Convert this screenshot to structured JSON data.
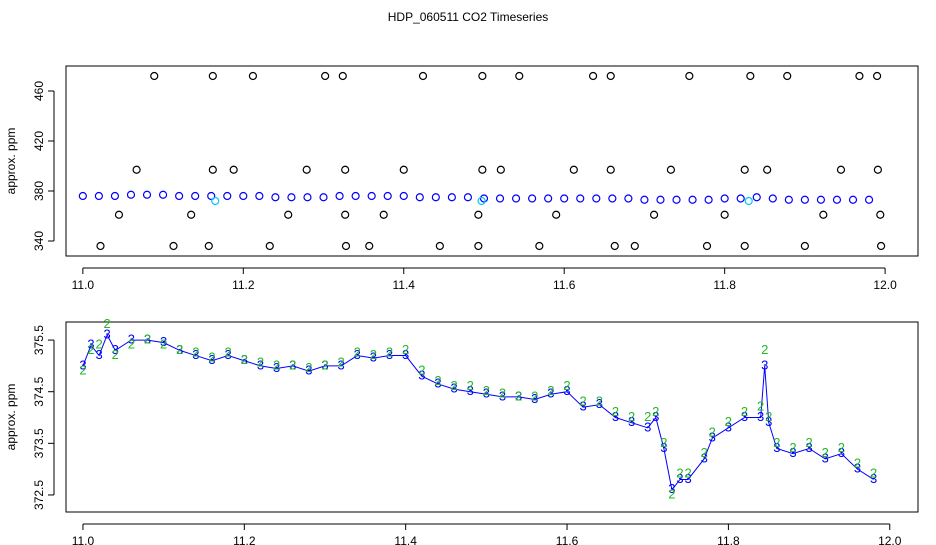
{
  "chart_data": [
    {
      "type": "scatter",
      "title": "HDP_060511  CO2 Timeseries",
      "ylabel": "approx. ppm",
      "xlim": [
        10.979,
        12.041
      ],
      "ylim": [
        328,
        480
      ],
      "xticks": [
        {
          "value": 11,
          "label": "11.0"
        },
        {
          "value": 11.2,
          "label": "11.2"
        },
        {
          "value": 11.4,
          "label": "11.4"
        },
        {
          "value": 11.6,
          "label": "11.6"
        },
        {
          "value": 11.8,
          "label": "11.8"
        },
        {
          "value": 12,
          "label": "12.0"
        }
      ],
      "yticks": [
        340,
        380,
        420,
        460
      ],
      "series": [
        {
          "color": "#0000ff",
          "x": [
            11.0,
            11.02,
            11.04,
            11.06,
            11.08,
            11.1,
            11.12,
            11.14,
            11.16,
            11.18,
            11.2,
            11.22,
            11.24,
            11.26,
            11.28,
            11.3,
            11.32,
            11.34,
            11.36,
            11.38,
            11.4,
            11.42,
            11.44,
            11.46,
            11.48,
            11.5,
            11.52,
            11.54,
            11.56,
            11.58,
            11.6,
            11.62,
            11.64,
            11.66,
            11.68,
            11.7,
            11.72,
            11.74,
            11.76,
            11.78,
            11.8,
            11.82,
            11.84,
            11.86,
            11.88,
            11.9,
            11.92,
            11.94,
            11.96,
            11.98
          ],
          "values": [
            376,
            376,
            376,
            377,
            377,
            377,
            376,
            376,
            376,
            376,
            376,
            376,
            375,
            375,
            375,
            375,
            376,
            376,
            376,
            376,
            376,
            375,
            375,
            375,
            375,
            374,
            374,
            374,
            374,
            374,
            374,
            374,
            374,
            374,
            374,
            373,
            373,
            373,
            373,
            373,
            374,
            374,
            375,
            374,
            373,
            373,
            373,
            373,
            373,
            373
          ]
        },
        {
          "color": "#00c8ff",
          "x": [
            11.165,
            11.497,
            11.83
          ],
          "values": [
            372,
            372,
            372
          ]
        },
        {
          "color": "#000000",
          "x": [
            11.089,
            11.162,
            11.212,
            11.302,
            11.324,
            11.424,
            11.498,
            11.544,
            11.636,
            11.658,
            11.756,
            11.832,
            11.878,
            11.968,
            11.99,
            11.022,
            11.113,
            11.157,
            11.233,
            11.328,
            11.357,
            11.445,
            11.493,
            11.569,
            11.663,
            11.688,
            11.778,
            11.825,
            11.9,
            11.995,
            11.045,
            11.135,
            11.256,
            11.327,
            11.375,
            11.493,
            11.59,
            11.712,
            11.8,
            11.923,
            11.994,
            11.067,
            11.162,
            11.188,
            11.279,
            11.327,
            11.4,
            11.498,
            11.521,
            11.612,
            11.658,
            11.733,
            11.825,
            11.853,
            11.945,
            11.991
          ],
          "values": [
            472,
            472,
            472,
            472,
            472,
            472,
            472,
            472,
            472,
            472,
            472,
            472,
            472,
            472,
            472,
            336,
            336,
            336,
            336,
            336,
            336,
            336,
            336,
            336,
            336,
            336,
            336,
            336,
            336,
            336,
            361,
            361,
            361,
            361,
            361,
            361,
            361,
            361,
            361,
            361,
            361,
            397,
            397,
            397,
            397,
            397,
            397,
            397,
            397,
            397,
            397,
            397,
            397,
            397,
            397,
            397
          ]
        }
      ]
    },
    {
      "type": "line",
      "ylabel": "approx. ppm",
      "xlim": [
        10.979,
        12.035
      ],
      "ylim": [
        372.17,
        375.85
      ],
      "xticks": [
        {
          "value": 11,
          "label": "11.0"
        },
        {
          "value": 11.2,
          "label": "11.2"
        },
        {
          "value": 11.4,
          "label": "11.4"
        },
        {
          "value": 11.6,
          "label": "11.6"
        },
        {
          "value": 11.8,
          "label": "11.8"
        },
        {
          "value": 12,
          "label": "12.0"
        }
      ],
      "yticks": [
        372.5,
        373.5,
        374.5,
        375.5
      ],
      "x": [
        11.0,
        11.01,
        11.02,
        11.03,
        11.04,
        11.06,
        11.08,
        11.1,
        11.12,
        11.14,
        11.16,
        11.18,
        11.2,
        11.22,
        11.24,
        11.26,
        11.28,
        11.3,
        11.32,
        11.34,
        11.36,
        11.38,
        11.4,
        11.42,
        11.44,
        11.46,
        11.48,
        11.5,
        11.52,
        11.54,
        11.56,
        11.58,
        11.6,
        11.62,
        11.64,
        11.66,
        11.68,
        11.7,
        11.71,
        11.72,
        11.73,
        11.74,
        11.75,
        11.77,
        11.78,
        11.8,
        11.82,
        11.84,
        11.845,
        11.85,
        11.86,
        11.88,
        11.9,
        11.92,
        11.94,
        11.96,
        11.98
      ],
      "series": [
        {
          "color": "#0000ff",
          "marker": "3",
          "line": true,
          "values": [
            375.0,
            375.4,
            375.2,
            375.6,
            375.3,
            375.5,
            375.5,
            375.45,
            375.3,
            375.2,
            375.1,
            375.2,
            375.1,
            375.0,
            374.95,
            375.0,
            374.9,
            375.0,
            375.0,
            375.2,
            375.15,
            375.2,
            375.2,
            374.8,
            374.65,
            374.55,
            374.5,
            374.45,
            374.4,
            374.4,
            374.35,
            374.45,
            374.5,
            374.2,
            374.25,
            374.0,
            373.9,
            373.8,
            374.0,
            373.4,
            372.6,
            372.8,
            372.8,
            373.2,
            373.6,
            373.8,
            374.0,
            374.0,
            375.0,
            373.9,
            373.4,
            373.3,
            373.4,
            373.2,
            373.3,
            373.0,
            372.8
          ]
        },
        {
          "color": "#22bb22",
          "marker": "2",
          "line": false,
          "values": [
            374.9,
            375.3,
            375.4,
            375.8,
            375.2,
            375.4,
            375.5,
            375.4,
            375.3,
            375.25,
            375.15,
            375.25,
            375.1,
            375.05,
            375.0,
            375.0,
            374.95,
            375.0,
            375.05,
            375.25,
            375.2,
            375.25,
            375.3,
            374.9,
            374.7,
            374.6,
            374.6,
            374.5,
            374.45,
            374.4,
            374.4,
            374.5,
            374.6,
            374.3,
            374.3,
            374.1,
            374.0,
            374.0,
            374.1,
            373.5,
            372.5,
            372.9,
            372.9,
            373.3,
            373.7,
            373.9,
            374.1,
            374.2,
            375.3,
            374.0,
            373.5,
            373.4,
            373.5,
            373.3,
            373.4,
            373.1,
            372.9
          ]
        }
      ]
    }
  ]
}
